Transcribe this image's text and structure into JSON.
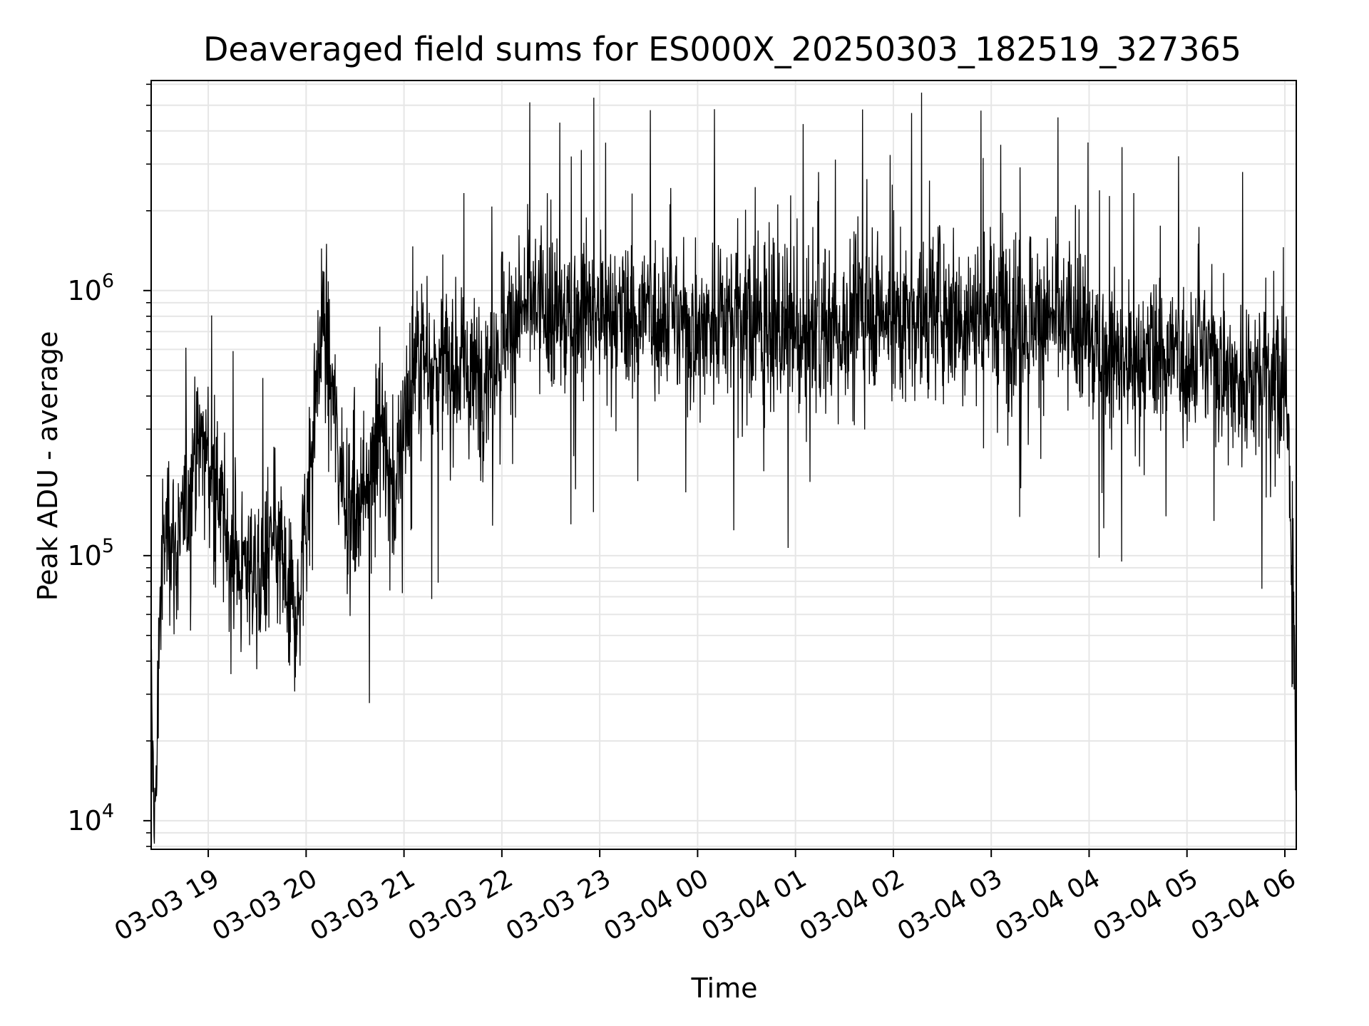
{
  "chart_data": {
    "type": "line",
    "title": "Deaveraged field sums for ES000X_20250303_182519_327365",
    "xlabel": "Time",
    "ylabel": "Peak ADU - average",
    "yscale": "log",
    "ylim": [
      7800,
      6200000
    ],
    "xlim": [
      "2025-03-03 18:25",
      "2025-03-04 06:07"
    ],
    "grid": true,
    "line_color": "#000000",
    "grid_color": "#e6e6e6",
    "x_ticks": [
      {
        "value": "2025-03-03 19:00",
        "label": "03-03 19"
      },
      {
        "value": "2025-03-03 20:00",
        "label": "03-03 20"
      },
      {
        "value": "2025-03-03 21:00",
        "label": "03-03 21"
      },
      {
        "value": "2025-03-03 22:00",
        "label": "03-03 22"
      },
      {
        "value": "2025-03-03 23:00",
        "label": "03-03 23"
      },
      {
        "value": "2025-03-04 00:00",
        "label": "03-04 00"
      },
      {
        "value": "2025-03-04 01:00",
        "label": "03-04 01"
      },
      {
        "value": "2025-03-04 02:00",
        "label": "03-04 02"
      },
      {
        "value": "2025-03-04 03:00",
        "label": "03-04 03"
      },
      {
        "value": "2025-03-04 04:00",
        "label": "03-04 04"
      },
      {
        "value": "2025-03-04 05:00",
        "label": "03-04 05"
      },
      {
        "value": "2025-03-04 06:00",
        "label": "03-04 06"
      }
    ],
    "y_ticks": [
      {
        "value": 10000,
        "base": "10",
        "exp": "4"
      },
      {
        "value": 100000,
        "base": "10",
        "exp": "5"
      },
      {
        "value": 1000000,
        "base": "10",
        "exp": "6"
      }
    ],
    "series": [
      {
        "values": [
          [
            "2025-03-03 18:25",
            25000
          ],
          [
            "2025-03-03 18:27",
            12000
          ],
          [
            "2025-03-03 18:28",
            10000
          ],
          [
            "2025-03-03 18:30",
            60000
          ],
          [
            "2025-03-03 18:33",
            110000
          ],
          [
            "2025-03-03 18:36",
            140000
          ],
          [
            "2025-03-03 18:40",
            100000
          ],
          [
            "2025-03-03 18:45",
            130000
          ],
          [
            "2025-03-03 18:50",
            200000
          ],
          [
            "2025-03-03 18:55",
            280000
          ],
          [
            "2025-03-03 19:00",
            230000
          ],
          [
            "2025-03-03 19:05",
            170000
          ],
          [
            "2025-03-03 19:10",
            130000
          ],
          [
            "2025-03-03 19:15",
            95000
          ],
          [
            "2025-03-03 19:20",
            85000
          ],
          [
            "2025-03-03 19:25",
            100000
          ],
          [
            "2025-03-03 19:30",
            80000
          ],
          [
            "2025-03-03 19:35",
            90000
          ],
          [
            "2025-03-03 19:40",
            110000
          ],
          [
            "2025-03-03 19:45",
            95000
          ],
          [
            "2025-03-03 19:50",
            70000
          ],
          [
            "2025-03-03 19:55",
            60000
          ],
          [
            "2025-03-03 20:00",
            150000
          ],
          [
            "2025-03-03 20:05",
            350000
          ],
          [
            "2025-03-03 20:10",
            800000
          ],
          [
            "2025-03-03 20:15",
            450000
          ],
          [
            "2025-03-03 20:20",
            250000
          ],
          [
            "2025-03-03 20:25",
            170000
          ],
          [
            "2025-03-03 20:30",
            140000
          ],
          [
            "2025-03-03 20:35",
            170000
          ],
          [
            "2025-03-03 20:40",
            260000
          ],
          [
            "2025-03-03 20:45",
            330000
          ],
          [
            "2025-03-03 20:50",
            240000
          ],
          [
            "2025-03-03 20:55",
            160000
          ],
          [
            "2025-03-03 21:00",
            350000
          ],
          [
            "2025-03-03 21:10",
            600000
          ],
          [
            "2025-03-03 21:20",
            500000
          ],
          [
            "2025-03-03 21:30",
            550000
          ],
          [
            "2025-03-03 21:40",
            450000
          ],
          [
            "2025-03-03 21:50",
            500000
          ],
          [
            "2025-03-03 22:00",
            700000
          ],
          [
            "2025-03-03 22:10",
            800000
          ],
          [
            "2025-03-03 22:20",
            900000
          ],
          [
            "2025-03-03 22:30",
            750000
          ],
          [
            "2025-03-03 22:40",
            800000
          ],
          [
            "2025-03-03 22:50",
            850000
          ],
          [
            "2025-03-03 23:00",
            800000
          ],
          [
            "2025-03-03 23:15",
            750000
          ],
          [
            "2025-03-03 23:30",
            850000
          ],
          [
            "2025-03-03 23:45",
            800000
          ],
          [
            "2025-03-04 00:00",
            700000
          ],
          [
            "2025-03-04 00:15",
            850000
          ],
          [
            "2025-03-04 00:30",
            800000
          ],
          [
            "2025-03-04 00:45",
            700000
          ],
          [
            "2025-03-04 01:00",
            650000
          ],
          [
            "2025-03-04 01:15",
            750000
          ],
          [
            "2025-03-04 01:30",
            700000
          ],
          [
            "2025-03-04 01:45",
            900000
          ],
          [
            "2025-03-04 02:00",
            750000
          ],
          [
            "2025-03-04 02:15",
            800000
          ],
          [
            "2025-03-04 02:30",
            900000
          ],
          [
            "2025-03-04 02:45",
            800000
          ],
          [
            "2025-03-04 03:00",
            850000
          ],
          [
            "2025-03-04 03:15",
            800000
          ],
          [
            "2025-03-04 03:30",
            800000
          ],
          [
            "2025-03-04 03:45",
            750000
          ],
          [
            "2025-03-04 04:00",
            650000
          ],
          [
            "2025-03-04 04:15",
            550000
          ],
          [
            "2025-03-04 04:30",
            500000
          ],
          [
            "2025-03-04 04:45",
            600000
          ],
          [
            "2025-03-04 05:00",
            550000
          ],
          [
            "2025-03-04 05:15",
            600000
          ],
          [
            "2025-03-04 05:30",
            450000
          ],
          [
            "2025-03-04 05:45",
            500000
          ],
          [
            "2025-03-04 06:00",
            450000
          ],
          [
            "2025-03-04 06:04",
            150000
          ],
          [
            "2025-03-04 06:06",
            30000
          ],
          [
            "2025-03-04 06:07",
            12000
          ]
        ]
      }
    ]
  }
}
